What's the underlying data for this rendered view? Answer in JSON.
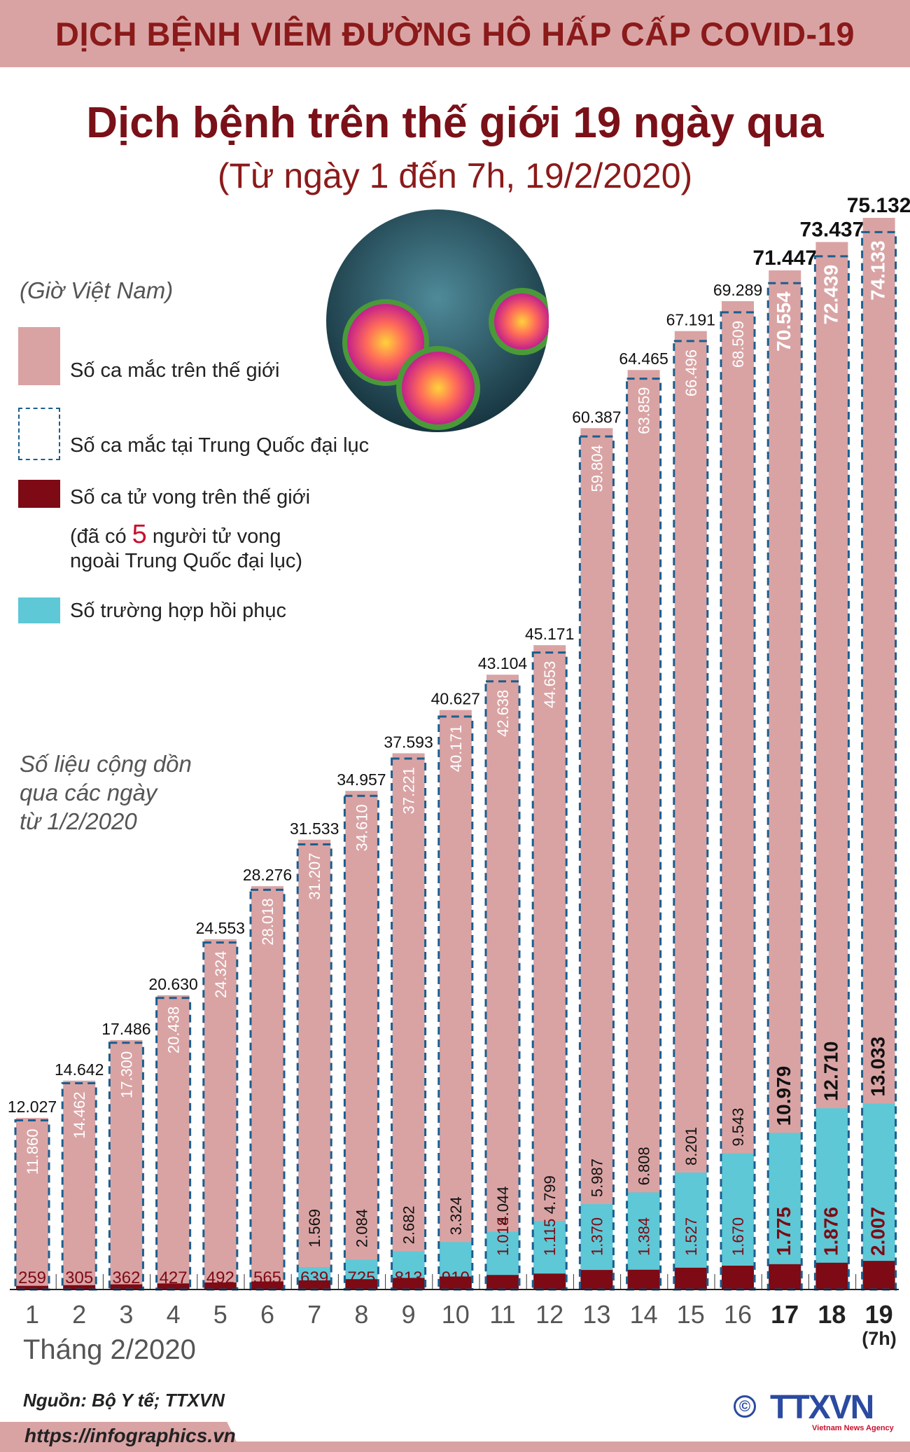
{
  "header": {
    "band_title": "DỊCH BỆNH VIÊM ĐƯỜNG HÔ HẤP CẤP COVID-19"
  },
  "title": "Dịch bệnh trên thế giới 19 ngày qua",
  "subtitle": "(Từ ngày 1 đến 7h, 19/2/2020)",
  "timezone_note": "(Giờ Việt Nam)",
  "legend": {
    "world_cases": "Số ca mắc trên thế giới",
    "china_cases": "Số ca mắc tại Trung Quốc đại lục",
    "world_deaths": "Số ca tử vong trên thế giới",
    "deaths_note_prefix": "(đã có",
    "deaths_note_number": "5",
    "deaths_note_suffix": "người tử vong",
    "deaths_note_line2": "ngoài Trung Quốc đại lục)",
    "recovered": "Số trường hợp hồi phục"
  },
  "cumulative_note": [
    "Số liệu cộng dồn",
    "qua các ngày",
    "từ 1/2/2020"
  ],
  "month_label": "Tháng 2/2020",
  "last_day_note": "(7h)",
  "source": "Nguồn: Bộ Y tế; TTXVN",
  "url": "https://infographics.vn",
  "logo": {
    "text": "TTXVN",
    "tagline": "Vietnam News Agency",
    "copyright": "©"
  },
  "colors": {
    "world": "#d9a3a4",
    "china": "#1b5e8e",
    "deaths": "#7d0a14",
    "recovered": "#5ec8d6",
    "title": "#7a1018"
  },
  "chart_data": {
    "type": "bar",
    "categories": [
      "1",
      "2",
      "3",
      "4",
      "5",
      "6",
      "7",
      "8",
      "9",
      "10",
      "11",
      "12",
      "13",
      "14",
      "15",
      "16",
      "17",
      "18",
      "19"
    ],
    "series": [
      {
        "name": "Số ca mắc trên thế giới",
        "values": [
          12027,
          14642,
          17486,
          20630,
          24553,
          28276,
          31533,
          34957,
          37593,
          40627,
          43104,
          45171,
          60387,
          64465,
          67191,
          69289,
          71447,
          73437,
          75132
        ]
      },
      {
        "name": "Số ca mắc tại Trung Quốc đại lục",
        "values": [
          11860,
          14462,
          17300,
          20438,
          24324,
          28018,
          31207,
          34610,
          37221,
          40171,
          42638,
          44653,
          59804,
          63859,
          66496,
          68509,
          70554,
          72439,
          74133
        ]
      },
      {
        "name": "Số ca tử vong trên thế giới",
        "values": [
          259,
          305,
          362,
          427,
          492,
          565,
          639,
          725,
          813,
          910,
          1018,
          1115,
          1370,
          1384,
          1527,
          1670,
          1775,
          1876,
          2007
        ]
      },
      {
        "name": "Số trường hợp hồi phục",
        "values": [
          null,
          null,
          null,
          null,
          null,
          null,
          1569,
          2084,
          2682,
          3324,
          4044,
          4799,
          5987,
          6808,
          8201,
          9543,
          10979,
          12710,
          13033
        ]
      }
    ],
    "ylim": [
      0,
      75132
    ],
    "xlabel": "Tháng 2/2020",
    "grid": false
  }
}
